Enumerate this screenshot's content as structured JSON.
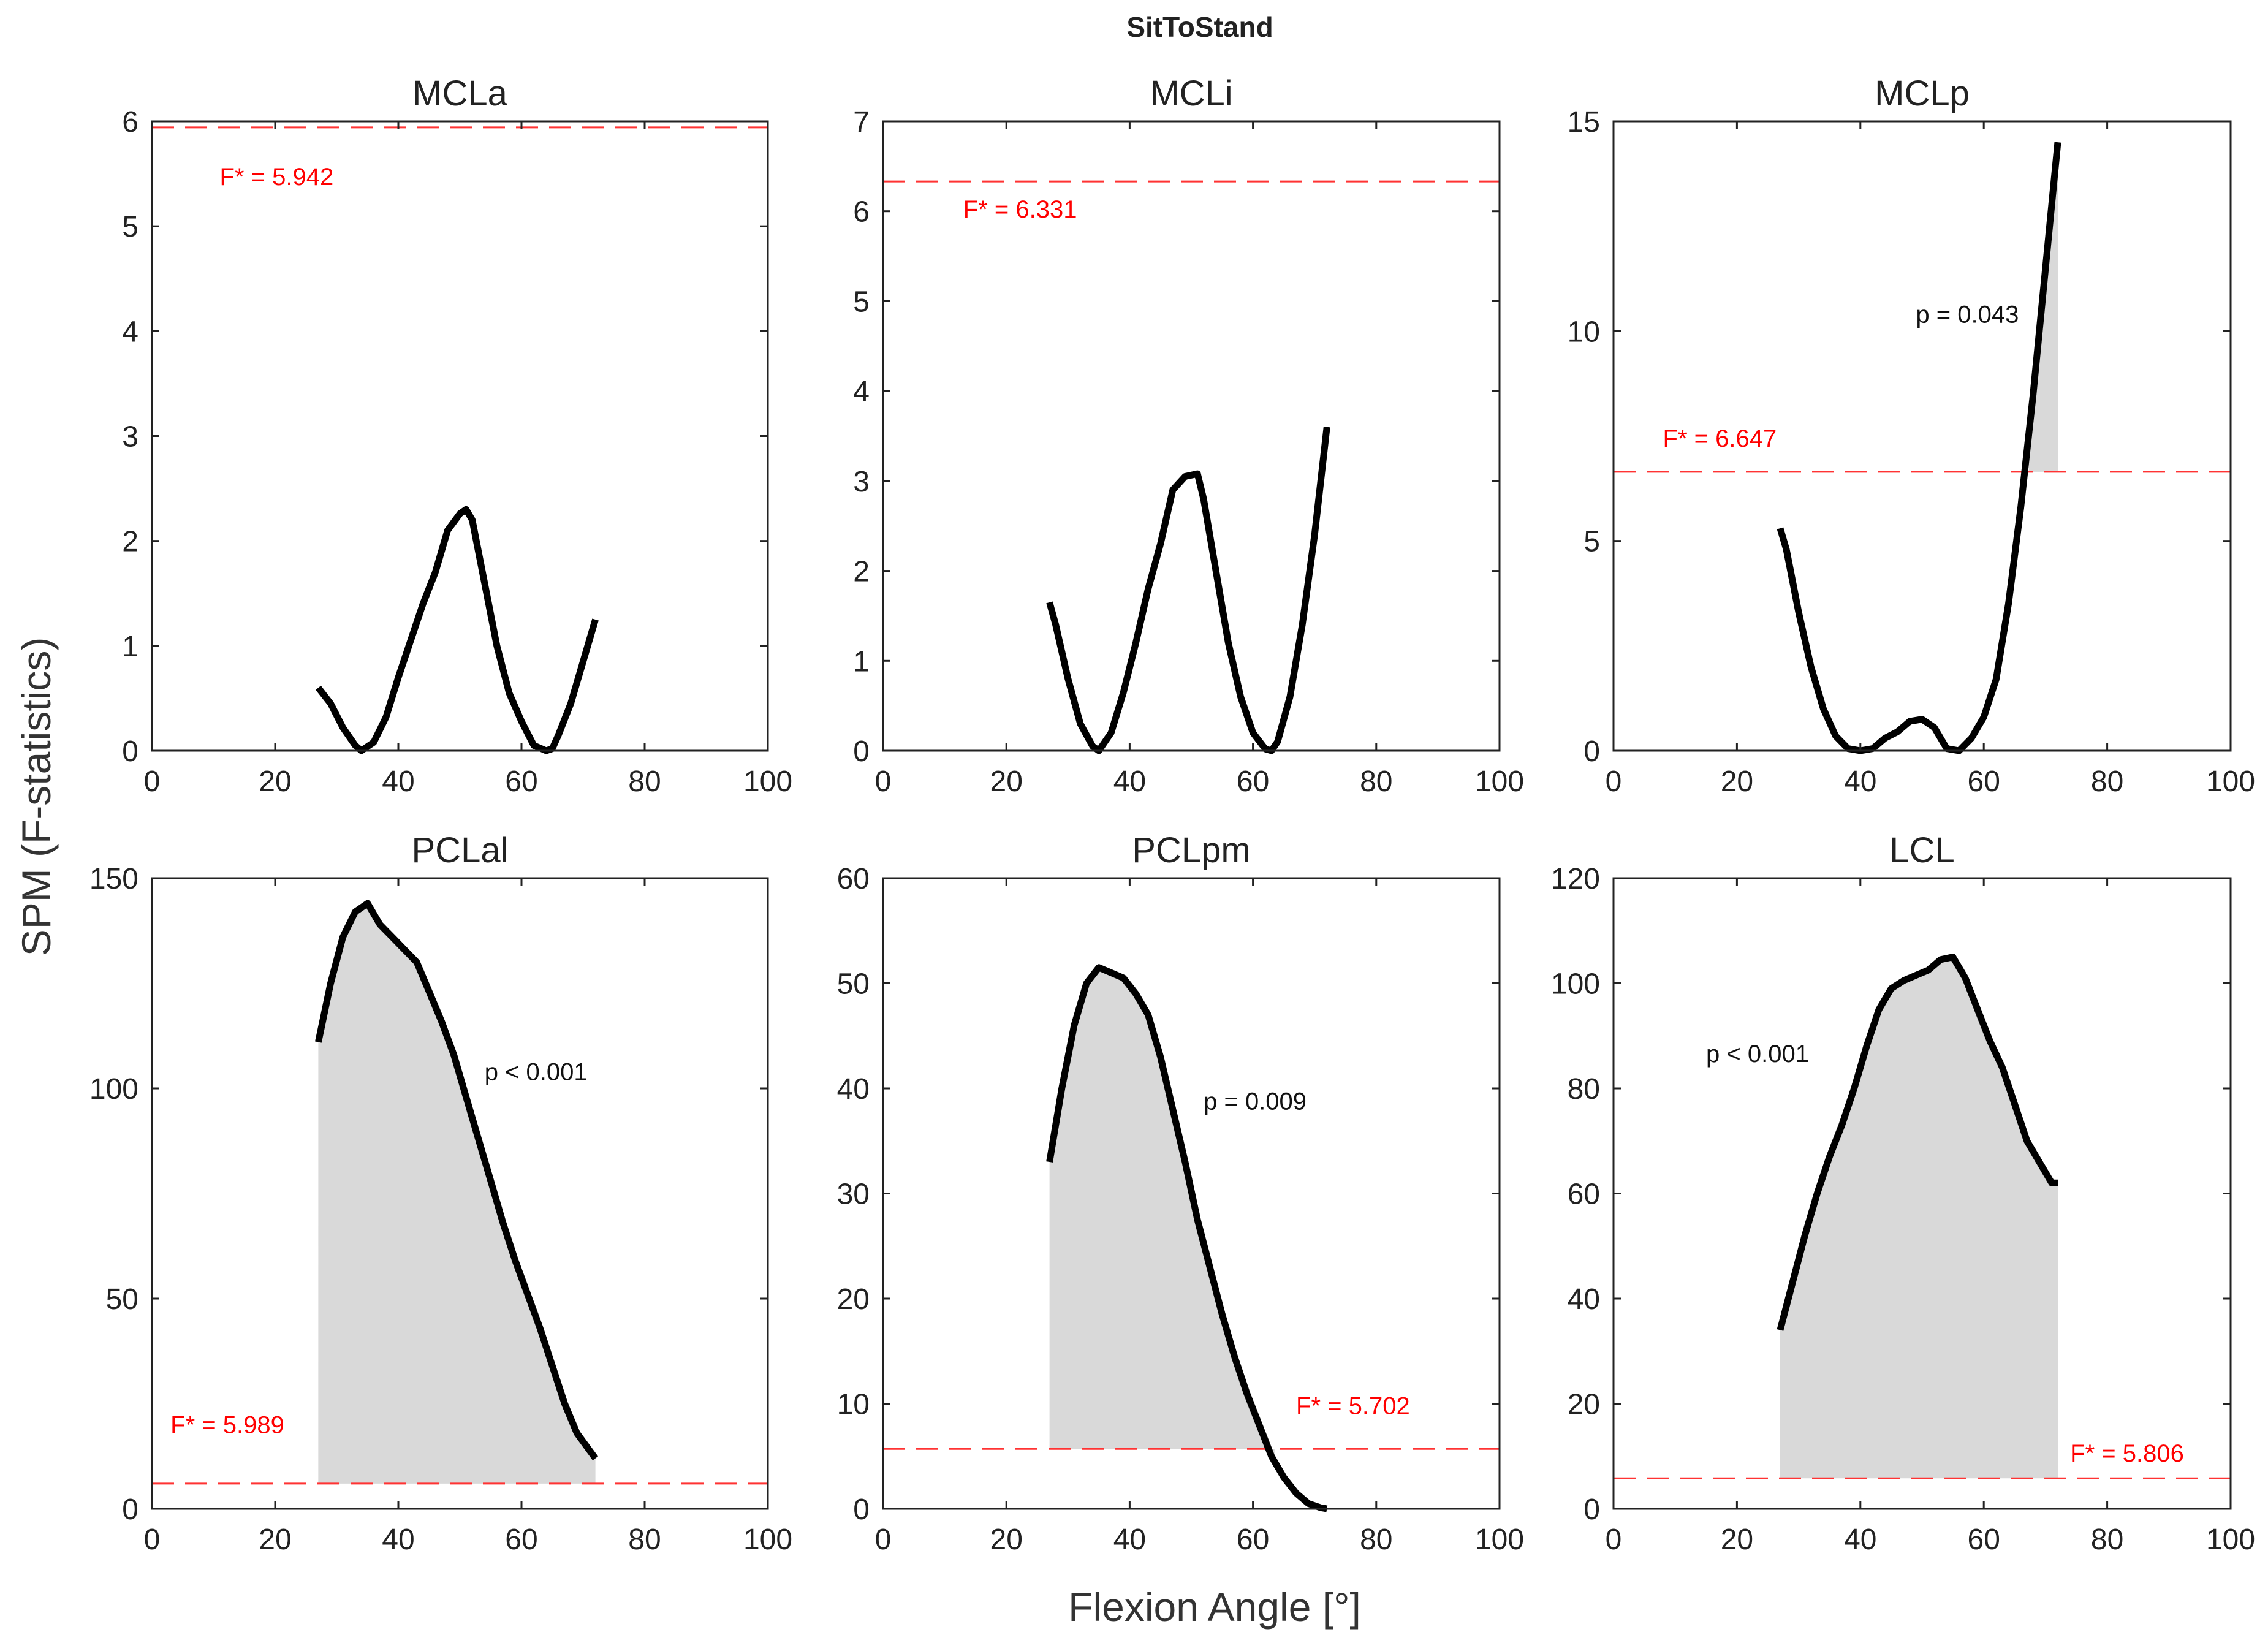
{
  "chart_data": {
    "type": "line",
    "title": "SitToStand",
    "xlabel": "Flexion Angle [°]",
    "ylabel": "SPM (F-statistics)",
    "colors": {
      "curve": "#000000",
      "threshold": "#ff3333",
      "threshold_text": "#ff0000",
      "cluster_fill": "#d9d9d9",
      "axis": "#222222"
    },
    "panels": [
      {
        "title": "MCLa",
        "xlim": [
          0,
          100
        ],
        "ylim": [
          0,
          6
        ],
        "xticks": [
          0,
          20,
          40,
          60,
          80,
          100
        ],
        "yticks": [
          0,
          1,
          2,
          3,
          4,
          5,
          6
        ],
        "threshold": 5.942,
        "threshold_label": "F* = 5.942",
        "x": [
          27,
          29,
          31,
          33,
          34,
          36,
          38,
          40,
          42,
          44,
          46,
          48,
          50,
          51,
          52,
          54,
          56,
          58,
          60,
          62,
          64,
          65,
          66,
          68,
          70,
          72
        ],
        "y": [
          0.6,
          0.45,
          0.22,
          0.05,
          0.0,
          0.08,
          0.32,
          0.7,
          1.05,
          1.4,
          1.7,
          2.1,
          2.26,
          2.3,
          2.2,
          1.6,
          1.0,
          0.55,
          0.28,
          0.05,
          0.0,
          0.02,
          0.15,
          0.45,
          0.85,
          1.25
        ],
        "clusters": []
      },
      {
        "title": "MCLi",
        "xlim": [
          0,
          100
        ],
        "ylim": [
          0,
          7
        ],
        "xticks": [
          0,
          20,
          40,
          60,
          80,
          100
        ],
        "yticks": [
          0,
          1,
          2,
          3,
          4,
          5,
          6,
          7
        ],
        "threshold": 6.331,
        "threshold_label": "F* = 6.331",
        "x": [
          27,
          28,
          30,
          32,
          34,
          35,
          37,
          39,
          41,
          43,
          45,
          47,
          49,
          51,
          52,
          54,
          56,
          58,
          60,
          62,
          63,
          64,
          66,
          68,
          70,
          72
        ],
        "y": [
          1.65,
          1.4,
          0.8,
          0.3,
          0.05,
          0.0,
          0.2,
          0.65,
          1.2,
          1.8,
          2.3,
          2.9,
          3.05,
          3.08,
          2.8,
          2.0,
          1.2,
          0.6,
          0.2,
          0.02,
          0.0,
          0.1,
          0.6,
          1.4,
          2.4,
          3.6
        ],
        "clusters": []
      },
      {
        "title": "MCLp",
        "xlim": [
          0,
          100
        ],
        "ylim": [
          0,
          15
        ],
        "xticks": [
          0,
          20,
          40,
          60,
          80,
          100
        ],
        "yticks": [
          0,
          5,
          10,
          15
        ],
        "threshold": 6.647,
        "threshold_label": "F* = 6.647",
        "x": [
          27,
          28,
          30,
          32,
          34,
          36,
          38,
          40,
          42,
          44,
          46,
          48,
          50,
          52,
          54,
          56,
          58,
          60,
          62,
          64,
          66,
          68,
          70,
          72
        ],
        "y": [
          5.3,
          4.8,
          3.3,
          2.0,
          1.0,
          0.35,
          0.05,
          0.0,
          0.05,
          0.3,
          0.45,
          0.7,
          0.75,
          0.55,
          0.05,
          0.0,
          0.3,
          0.8,
          1.7,
          3.5,
          5.8,
          8.5,
          11.5,
          14.5
        ],
        "clusters": [
          {
            "start": 67.3,
            "end": 72,
            "p_label": "p = 0.043"
          }
        ]
      },
      {
        "title": "PCLal",
        "xlim": [
          0,
          100
        ],
        "ylim": [
          0,
          150
        ],
        "xticks": [
          0,
          20,
          40,
          60,
          80,
          100
        ],
        "yticks": [
          0,
          50,
          100,
          150
        ],
        "threshold": 5.989,
        "threshold_label": "F* = 5.989",
        "x": [
          27,
          29,
          31,
          33,
          35,
          37,
          39,
          41,
          43,
          45,
          47,
          49,
          51,
          53,
          55,
          57,
          59,
          61,
          63,
          65,
          67,
          69,
          71,
          72
        ],
        "y": [
          111,
          125,
          136,
          142,
          144,
          139,
          136,
          133,
          130,
          123,
          116,
          108,
          98,
          88,
          78,
          68,
          59,
          51,
          43,
          34,
          25,
          18,
          14,
          12
        ],
        "clusters": [
          {
            "start": 27,
            "end": 72,
            "p_label": "p < 0.001"
          }
        ]
      },
      {
        "title": "PCLpm",
        "xlim": [
          0,
          100
        ],
        "ylim": [
          0,
          60
        ],
        "xticks": [
          0,
          20,
          40,
          60,
          80,
          100
        ],
        "yticks": [
          0,
          10,
          20,
          30,
          40,
          50,
          60
        ],
        "threshold": 5.702,
        "threshold_label": "F* = 5.702",
        "x": [
          27,
          29,
          31,
          33,
          35,
          37,
          39,
          41,
          43,
          45,
          47,
          49,
          51,
          53,
          55,
          57,
          59,
          61,
          63,
          65,
          67,
          69,
          71,
          72
        ],
        "y": [
          33,
          40,
          46,
          50,
          51.5,
          51,
          50.5,
          49,
          47,
          43,
          38,
          33,
          27.5,
          23,
          18.5,
          14.5,
          11,
          8,
          5,
          3,
          1.5,
          0.5,
          0.1,
          0.0
        ],
        "clusters": [
          {
            "start": 27,
            "end": 63.5,
            "p_label": "p = 0.009"
          }
        ]
      },
      {
        "title": "LCL",
        "xlim": [
          0,
          100
        ],
        "ylim": [
          0,
          120
        ],
        "xticks": [
          0,
          20,
          40,
          60,
          80,
          100
        ],
        "yticks": [
          0,
          20,
          40,
          60,
          80,
          100,
          120
        ],
        "threshold": 5.806,
        "threshold_label": "F* = 5.806",
        "x": [
          27,
          29,
          31,
          33,
          35,
          37,
          39,
          41,
          43,
          45,
          47,
          49,
          51,
          53,
          55,
          57,
          59,
          61,
          63,
          65,
          67,
          69,
          71,
          72
        ],
        "y": [
          34,
          43,
          52,
          60,
          67,
          73,
          80,
          88,
          95,
          99,
          100.5,
          101.5,
          102.5,
          104.5,
          105,
          101,
          95,
          89,
          84,
          77,
          70,
          66,
          62,
          62
        ],
        "clusters": [
          {
            "start": 27,
            "end": 72,
            "p_label": "p < 0.001"
          }
        ]
      }
    ]
  }
}
